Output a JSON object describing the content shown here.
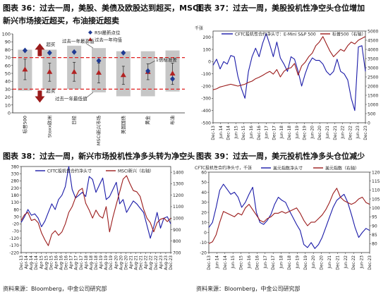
{
  "titles": {
    "fig36_line1": "图表 36：过去一周，美股、美债及欧股达到超买，MSCI",
    "fig36_line2": "新兴市场接近超买，布油接近超卖",
    "fig37": "图表 37：过去一周，美股投机性净空头仓位增加",
    "fig38": "图表 38：过去一周，新兴市场投机性净多头转为净空头",
    "fig39": "图表 39：过去一周，美元投机性净多头仓位减少"
  },
  "sources": {
    "left": "资料来源：Bloomberg，中金公司研究部",
    "right": "资料来源：Bloomberg，中金公司研究部"
  },
  "chart_data": [
    {
      "id": "fig36",
      "type": "bar",
      "categories": [
        "标普500",
        "Stoxx欧洲",
        "日经",
        "MSCI新兴市场",
        "美国国债",
        "黄金",
        "布油"
      ],
      "ylim": [
        0,
        100
      ],
      "yticks": [
        0,
        10,
        20,
        30,
        40,
        50,
        60,
        70,
        80,
        90,
        100
      ],
      "series": [
        {
          "name": "RSI最新点位",
          "values": [
            79,
            76,
            77,
            66,
            76,
            53,
            43
          ],
          "color": "#1f3a93"
        },
        {
          "name": "过去一年均值",
          "values": [
            55,
            52,
            52,
            51,
            48,
            52,
            50
          ],
          "color": "#b22222"
        },
        {
          "name": "过去一年最高值",
          "values": [
            80,
            80,
            85,
            82,
            78,
            78,
            79
          ]
        },
        {
          "name": "过去一年最低值",
          "values": [
            28,
            30,
            30,
            26,
            21,
            21,
            27
          ]
        }
      ],
      "std_band": {
        "low": [
          42,
          40,
          40,
          38,
          36,
          42,
          36
        ],
        "high": [
          68,
          63,
          64,
          63,
          59,
          62,
          63
        ]
      },
      "overbought_line": 70,
      "oversold_line": 30,
      "annotations": {
        "overbought": "超买",
        "oversold": "超卖",
        "one_std": "1倍标准差",
        "year_high": "过去一年最高值",
        "year_low": "过去一年最低值"
      },
      "grid": false
    },
    {
      "id": "fig37",
      "type": "line",
      "ylabel_left": "千张",
      "ylim_left": [
        -500,
        250
      ],
      "yticks_left": [
        -500,
        -400,
        -300,
        -200,
        -100,
        0,
        100,
        200
      ],
      "ylim_right": [
        0,
        5000
      ],
      "yticks_right": [
        0,
        500,
        1000,
        1500,
        2000,
        2500,
        3000,
        3500,
        4000,
        4500,
        5000
      ],
      "x_labels": [
        "Dec-13",
        "Jun-14",
        "Dec-14",
        "Jun-15",
        "Dec-15",
        "Jun-16",
        "Dec-16",
        "Jun-17",
        "Dec-17",
        "Jun-18",
        "Dec-18",
        "Jun-19",
        "Dec-19",
        "Jun-20",
        "Dec-20",
        "Jun-21",
        "Dec-21",
        "Jun-22",
        "Dec-22",
        "Jun-23",
        "Dec-23"
      ],
      "series": [
        {
          "name": "CFTC投机性合约净头寸：E-Mini S&P 500",
          "axis": "left",
          "color": "#1a1aa8",
          "values": [
            -30,
            20,
            -60,
            0,
            -20,
            50,
            40,
            -120,
            -220,
            -300,
            -80,
            40,
            110,
            40,
            150,
            230,
            140,
            40,
            160,
            30,
            -20,
            -80,
            40,
            20,
            -80,
            -200,
            -100,
            -20,
            30,
            10,
            10,
            -20,
            -80,
            -110,
            -80,
            20,
            -80,
            -100,
            -150,
            -300,
            -400,
            120,
            130,
            -80
          ]
        },
        {
          "name": "标普500（右轴）",
          "axis": "right",
          "color": "#9b1b1b",
          "values": [
            1800,
            1850,
            1950,
            2000,
            2050,
            2100,
            2050,
            2000,
            2050,
            2100,
            2200,
            2270,
            2400,
            2480,
            2580,
            2700,
            2800,
            2650,
            2900,
            2500,
            2800,
            2950,
            3000,
            3230,
            2600,
            3100,
            3300,
            3600,
            3800,
            4200,
            4400,
            4700,
            4300,
            3900,
            3600,
            3800,
            4000,
            3900,
            4200,
            4400,
            4300,
            4500,
            4600,
            4700
          ]
        }
      ],
      "grid": false
    },
    {
      "id": "fig38",
      "type": "line",
      "ylim_left": [
        -220,
        380
      ],
      "yticks_left": [
        -220,
        -170,
        -120,
        -70,
        -20,
        30,
        80,
        130,
        180,
        230,
        280,
        330,
        380
      ],
      "ylim_right": [
        700,
        1450
      ],
      "yticks_right": [
        700,
        800,
        900,
        1000,
        1100,
        1200,
        1300,
        1400
      ],
      "x_labels": [
        "Dec-13",
        "Apr-14",
        "Aug-14",
        "Dec-14",
        "Apr-15",
        "Aug-15",
        "Dec-15",
        "Apr-16",
        "Aug-16",
        "Dec-16",
        "Apr-17",
        "Aug-17",
        "Dec-17",
        "Apr-18",
        "Aug-18",
        "Dec-18",
        "Apr-19",
        "Aug-19",
        "Dec-19",
        "Apr-20",
        "Aug-20",
        "Dec-20",
        "Apr-21",
        "Aug-21",
        "Dec-21",
        "Apr-22",
        "Aug-22",
        "Dec-22",
        "Apr-23",
        "Aug-23",
        "Dec-23"
      ],
      "series": [
        {
          "name": "CFTC投机性合约净头寸",
          "axis": "left",
          "color": "#1a1aa8",
          "values": [
            -10,
            30,
            80,
            40,
            50,
            20,
            -40,
            0,
            60,
            120,
            80,
            150,
            180,
            240,
            380,
            220,
            160,
            180,
            200,
            170,
            310,
            290,
            200,
            250,
            300,
            150,
            170,
            220,
            270,
            120,
            150,
            60,
            100,
            140,
            120,
            90,
            60,
            -30,
            -120,
            -40,
            60,
            -50,
            20,
            30,
            -20
          ]
        },
        {
          "name": "MSCI新兴（右轴）",
          "axis": "right",
          "color": "#9b1b1b",
          "values": [
            980,
            1030,
            1050,
            980,
            990,
            960,
            870,
            810,
            760,
            860,
            890,
            850,
            880,
            950,
            1050,
            1100,
            1180,
            1240,
            1260,
            1130,
            1070,
            1000,
            1070,
            1020,
            1000,
            1100,
            880,
            1010,
            1120,
            1230,
            1340,
            1370,
            1300,
            1240,
            1230,
            1190,
            1080,
            1000,
            960,
            880,
            960,
            990,
            1000,
            970,
            1000
          ]
        }
      ],
      "grid": false
    },
    {
      "id": "fig39",
      "type": "line",
      "ylabel_left": "CFTC投机性合约净头寸，千张",
      "ylim_left": [
        -20,
        60
      ],
      "yticks_left": [
        -20,
        -10,
        0,
        10,
        20,
        30,
        40,
        50,
        60
      ],
      "ylim_right": [
        75,
        120
      ],
      "yticks_right": [
        80,
        85,
        90,
        95,
        100,
        105,
        110,
        115,
        120
      ],
      "x_labels": [
        "Dec-13",
        "Jun-14",
        "Dec-14",
        "Jun-15",
        "Dec-15",
        "Jun-16",
        "Dec-16",
        "Jun-17",
        "Dec-17",
        "Jun-18",
        "Dec-18",
        "Jun-19",
        "Dec-19",
        "Jun-20",
        "Dec-20",
        "Jun-21",
        "Dec-21",
        "Jun-22",
        "Dec-22",
        "Jun-23",
        "Dec-23"
      ],
      "series": [
        {
          "name": "美元指数净头寸",
          "axis": "left",
          "color": "#1a1aa8",
          "values": [
            5,
            10,
            25,
            42,
            48,
            43,
            38,
            40,
            35,
            25,
            30,
            38,
            45,
            20,
            10,
            8,
            12,
            18,
            28,
            35,
            32,
            30,
            22,
            15,
            8,
            2,
            -12,
            -15,
            -10,
            -16,
            -12,
            -5,
            5,
            15,
            25,
            32,
            35,
            38,
            30,
            18,
            5,
            -5,
            0,
            4,
            2
          ]
        },
        {
          "name": "美元指数（右轴）",
          "axis": "right",
          "color": "#9b1b1b",
          "values": [
            80,
            81,
            85,
            92,
            98,
            97,
            96,
            95,
            97,
            96,
            100,
            102,
            99,
            96,
            93,
            92,
            94,
            95,
            97,
            97,
            98,
            97,
            98,
            99,
            100,
            97,
            93,
            90,
            92,
            92,
            94,
            96,
            99,
            103,
            108,
            111,
            106,
            104,
            103,
            102,
            103,
            105,
            106,
            103,
            102
          ]
        }
      ],
      "grid": false
    }
  ]
}
